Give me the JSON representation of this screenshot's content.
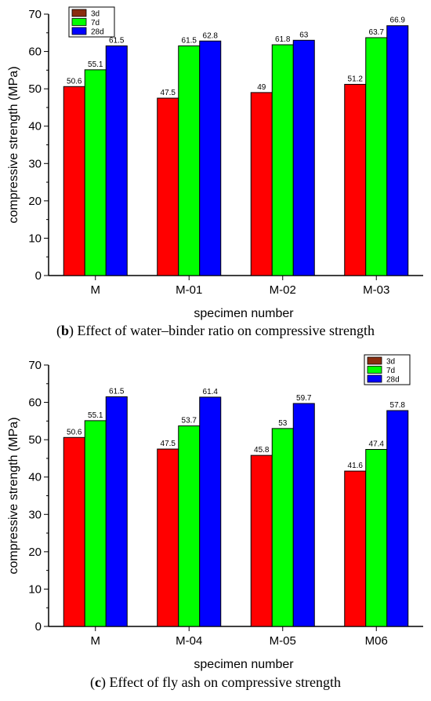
{
  "captions": [
    {
      "letter": "b",
      "text": ") Effect of water–binder ratio on compressive strength"
    },
    {
      "letter": "c",
      "text": ") Effect of fly ash on compressive strength"
    }
  ],
  "colors": {
    "3d": "#ff0000",
    "7d": "#00ff00",
    "28d": "#0000ff",
    "legend_3d": "#8b2d0f"
  },
  "chart_data": [
    {
      "type": "bar",
      "categories": [
        "M",
        "M-01",
        "M-02",
        "M-03"
      ],
      "series": [
        {
          "name": "3d",
          "values": [
            50.6,
            47.5,
            49,
            51.2
          ]
        },
        {
          "name": "7d",
          "values": [
            55.1,
            61.5,
            61.8,
            63.7
          ]
        },
        {
          "name": "28d",
          "values": [
            61.5,
            62.8,
            63,
            66.9
          ]
        }
      ],
      "data_labels": [
        [
          "50.6",
          "47.5",
          "49",
          "51.2"
        ],
        [
          "55.1",
          "61.5",
          "61.8",
          "63.7"
        ],
        [
          "61.5",
          "62.8",
          "63",
          "66.9"
        ]
      ],
      "xlabel": "specimen number",
      "ylabel": "compressive strength (MPa)",
      "ylim": [
        0,
        70
      ],
      "yticks": [
        "0",
        "10",
        "20",
        "30",
        "40",
        "50",
        "60",
        "70"
      ],
      "legend": "top-left",
      "grid": false
    },
    {
      "type": "bar",
      "categories": [
        "M",
        "M-04",
        "M-05",
        "M06"
      ],
      "series": [
        {
          "name": "3d",
          "values": [
            50.6,
            47.5,
            45.8,
            41.6
          ]
        },
        {
          "name": "7d",
          "values": [
            55.1,
            53.7,
            53,
            47.4
          ]
        },
        {
          "name": "28d",
          "values": [
            61.5,
            61.4,
            59.7,
            57.8
          ]
        }
      ],
      "data_labels": [
        [
          "50.6",
          "47.5",
          "45.8",
          "41.6"
        ],
        [
          "55.1",
          "53.7",
          "53",
          "47.4"
        ],
        [
          "61.5",
          "61.4",
          "59.7",
          "57.8"
        ]
      ],
      "xlabel": "specimen number",
      "ylabel": "compressive strength (MPa)",
      "ylim": [
        0,
        70
      ],
      "yticks": [
        "0",
        "10",
        "20",
        "30",
        "40",
        "50",
        "60",
        "70"
      ],
      "legend": "top-right",
      "grid": false
    }
  ]
}
